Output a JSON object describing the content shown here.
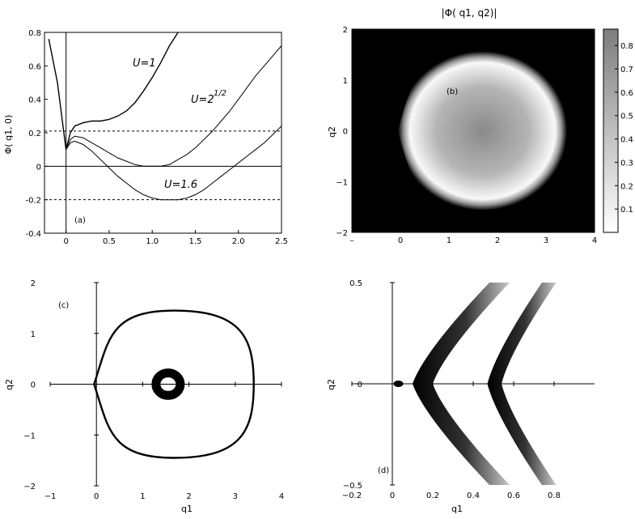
{
  "chart_data": [
    {
      "panel": "a",
      "type": "line",
      "panel_label": "(a)",
      "title": "",
      "xlabel": "",
      "ylabel": "Φ( q1, 0)",
      "xlim": [
        -0.25,
        2.5
      ],
      "ylim": [
        -0.4,
        0.8
      ],
      "xticks": [
        0,
        0.5,
        1,
        1.5,
        2,
        2.5
      ],
      "xtick_labels": [
        "0",
        "0.5",
        "1.0",
        "1.5",
        "2.0",
        "2.5"
      ],
      "yticks": [
        -0.4,
        -0.2,
        0,
        0.2,
        0.4,
        0.6,
        0.8
      ],
      "ytick_labels": [
        "-0.4",
        "-0.2",
        "0",
        "0.2",
        "0.4",
        "0.6",
        "0.8"
      ],
      "reference_lines": [
        0.21,
        -0.2
      ],
      "series": [
        {
          "name": "U=1",
          "label_text": "U=1",
          "x": [
            -0.2,
            -0.1,
            0,
            0.05,
            0.1,
            0.2,
            0.3,
            0.4,
            0.5,
            0.6,
            0.7,
            0.8,
            0.9,
            1.0,
            1.1,
            1.2,
            1.3
          ],
          "y": [
            0.76,
            0.5,
            0.1,
            0.2,
            0.24,
            0.26,
            0.27,
            0.27,
            0.28,
            0.3,
            0.33,
            0.38,
            0.45,
            0.53,
            0.62,
            0.72,
            0.8
          ]
        },
        {
          "name": "U=2^1/2",
          "label_text": "U=2",
          "label_sup": "1/2",
          "x": [
            0,
            0.05,
            0.1,
            0.2,
            0.3,
            0.4,
            0.5,
            0.6,
            0.7,
            0.8,
            0.9,
            1.0,
            1.1,
            1.2,
            1.3,
            1.4,
            1.5,
            1.6,
            1.7,
            1.8,
            1.9,
            2.0,
            2.1,
            2.2,
            2.3,
            2.4,
            2.5
          ],
          "y": [
            0.1,
            0.16,
            0.18,
            0.17,
            0.14,
            0.11,
            0.08,
            0.05,
            0.03,
            0.01,
            0.0,
            0.0,
            0.0,
            0.01,
            0.04,
            0.07,
            0.11,
            0.16,
            0.21,
            0.27,
            0.33,
            0.4,
            0.47,
            0.54,
            0.6,
            0.66,
            0.72
          ]
        },
        {
          "name": "U=1.6",
          "label_text": "U=1.6",
          "x": [
            0,
            0.05,
            0.1,
            0.2,
            0.3,
            0.4,
            0.5,
            0.6,
            0.7,
            0.8,
            0.9,
            1.0,
            1.1,
            1.2,
            1.3,
            1.4,
            1.5,
            1.6,
            1.7,
            1.8,
            1.9,
            2.0,
            2.1,
            2.2,
            2.3,
            2.4,
            2.5
          ],
          "y": [
            0.1,
            0.14,
            0.15,
            0.13,
            0.09,
            0.04,
            -0.01,
            -0.06,
            -0.1,
            -0.14,
            -0.17,
            -0.19,
            -0.2,
            -0.2,
            -0.2,
            -0.19,
            -0.17,
            -0.14,
            -0.1,
            -0.06,
            -0.02,
            0.02,
            0.06,
            0.1,
            0.14,
            0.19,
            0.24
          ]
        }
      ]
    },
    {
      "panel": "b",
      "type": "heatmap",
      "panel_label": "(b)",
      "title": "|Φ( q1, q2)|",
      "xlabel": "",
      "ylabel": "q2",
      "xlim": [
        -1,
        4
      ],
      "ylim": [
        -2,
        2
      ],
      "xticks": [
        -1,
        0,
        1,
        2,
        3,
        4
      ],
      "xtick_labels": [
        "–",
        "0",
        "1",
        "2",
        "3",
        "4"
      ],
      "yticks": [
        2,
        1,
        0,
        -1,
        -2
      ],
      "ytick_labels": [
        "2",
        "1",
        "0",
        "−1",
        "−2"
      ],
      "colorbar": {
        "ticks": [
          0.1,
          0.2,
          0.3,
          0.4,
          0.5,
          0.6,
          0.7,
          0.8
        ],
        "tick_labels": [
          "0.1",
          "0.2",
          "0.3",
          "0.4",
          "0.5",
          "0.6",
          "0.7",
          "0.8"
        ],
        "range": [
          0,
          0.87
        ],
        "colormap": "gray"
      },
      "center": [
        1.6,
        0
      ],
      "ridge_radii": {
        "right": 1.7,
        "left": 1.55,
        "vertical": 1.45,
        "cusp_x": 0
      }
    },
    {
      "panel": "c",
      "type": "line",
      "panel_label": "(c)",
      "title": "",
      "xlabel": "q1",
      "ylabel": "q2",
      "xlim": [
        -1,
        4
      ],
      "ylim": [
        -2,
        2
      ],
      "xticks": [
        -1,
        0,
        1,
        2,
        3,
        4
      ],
      "xtick_labels": [
        "−1",
        "0",
        "1",
        "2",
        "3",
        "4"
      ],
      "yticks": [
        2,
        1,
        0,
        -1,
        -2
      ],
      "ytick_labels": [
        "2",
        "1",
        "0",
        "−1",
        "−2"
      ],
      "curves": [
        {
          "name": "outer contour",
          "shape": "teardrop",
          "center": [
            1.6,
            0
          ],
          "right_x": 3.4,
          "left_cusp_x": -0.05,
          "top_y": 1.45
        },
        {
          "name": "inner ring",
          "shape": "ellipse",
          "center": [
            1.55,
            0
          ],
          "rx": 0.35,
          "ry": 0.3
        }
      ]
    },
    {
      "panel": "d",
      "type": "heatmap",
      "panel_label": "(d)",
      "title": "",
      "xlabel": "q1",
      "ylabel": "q2",
      "xlim": [
        -0.2,
        1.0
      ],
      "ylim": [
        -0.5,
        0.5
      ],
      "xticks": [
        -0.2,
        0,
        0.2,
        0.4,
        0.6,
        0.8
      ],
      "xtick_labels": [
        "−0.2",
        "0",
        "0.2",
        "0.4",
        "0.6",
        "0.8"
      ],
      "yticks": [
        0.5,
        0,
        -0.5
      ],
      "ytick_labels": [
        "0.5",
        "0",
        "−0.5"
      ],
      "bands": [
        {
          "vertex_x": 0.1,
          "top_x": 0.48,
          "width": 0.1
        },
        {
          "vertex_x": 0.47,
          "top_x": 0.74,
          "width": 0.07
        }
      ],
      "dot": [
        0.03,
        0
      ]
    }
  ]
}
